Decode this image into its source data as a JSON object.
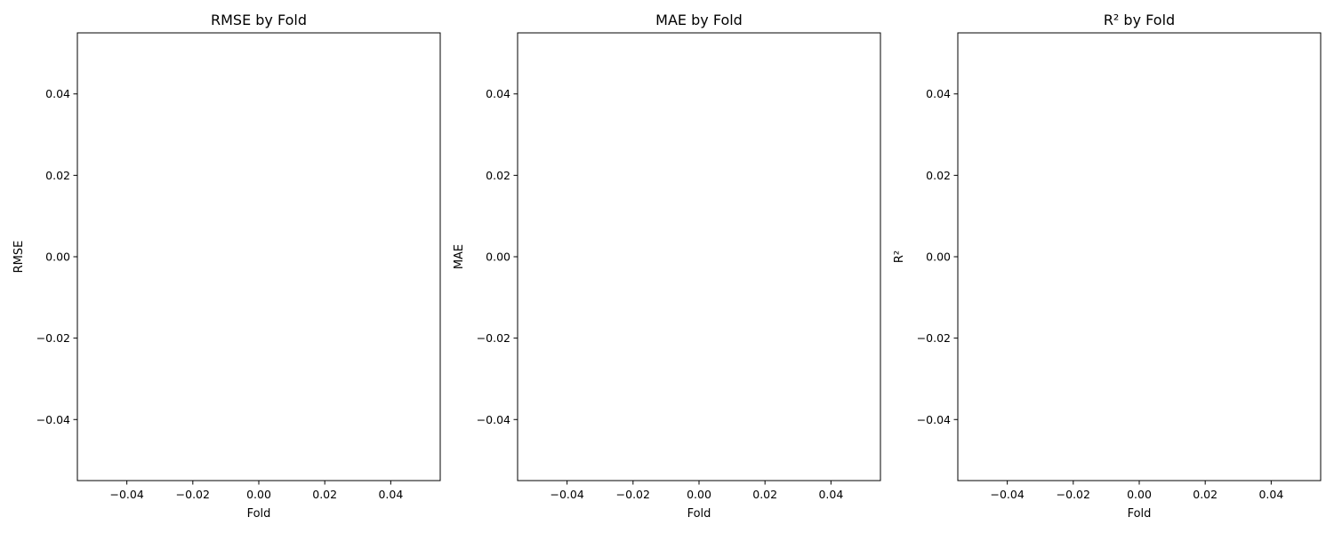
{
  "chart_data": [
    {
      "type": "line",
      "title": "RMSE by Fold",
      "xlabel": "Fold",
      "ylabel": "RMSE",
      "x": [],
      "series": [
        {
          "values": []
        }
      ],
      "xlim": [
        -0.055,
        0.055
      ],
      "ylim": [
        -0.055,
        0.055
      ],
      "xticks": [
        -0.04,
        -0.02,
        0.0,
        0.02,
        0.04
      ],
      "xtick_labels": [
        "−0.04",
        "−0.02",
        "0.00",
        "0.02",
        "0.04"
      ],
      "yticks": [
        -0.04,
        -0.02,
        0.0,
        0.02,
        0.04
      ],
      "ytick_labels": [
        "−0.04",
        "−0.02",
        "0.00",
        "0.02",
        "0.04"
      ],
      "grid": false
    },
    {
      "type": "line",
      "title": "MAE by Fold",
      "xlabel": "Fold",
      "ylabel": "MAE",
      "x": [],
      "series": [
        {
          "values": []
        }
      ],
      "xlim": [
        -0.055,
        0.055
      ],
      "ylim": [
        -0.055,
        0.055
      ],
      "xticks": [
        -0.04,
        -0.02,
        0.0,
        0.02,
        0.04
      ],
      "xtick_labels": [
        "−0.04",
        "−0.02",
        "0.00",
        "0.02",
        "0.04"
      ],
      "yticks": [
        -0.04,
        -0.02,
        0.0,
        0.02,
        0.04
      ],
      "ytick_labels": [
        "−0.04",
        "−0.02",
        "0.00",
        "0.02",
        "0.04"
      ],
      "grid": false
    },
    {
      "type": "line",
      "title": "R² by Fold",
      "xlabel": "Fold",
      "ylabel": "R²",
      "x": [],
      "series": [
        {
          "values": []
        }
      ],
      "xlim": [
        -0.055,
        0.055
      ],
      "ylim": [
        -0.055,
        0.055
      ],
      "xticks": [
        -0.04,
        -0.02,
        0.0,
        0.02,
        0.04
      ],
      "xtick_labels": [
        "−0.04",
        "−0.02",
        "0.00",
        "0.02",
        "0.04"
      ],
      "yticks": [
        -0.04,
        -0.02,
        0.0,
        0.02,
        0.04
      ],
      "ytick_labels": [
        "−0.04",
        "−0.02",
        "0.00",
        "0.02",
        "0.04"
      ],
      "grid": false
    }
  ]
}
